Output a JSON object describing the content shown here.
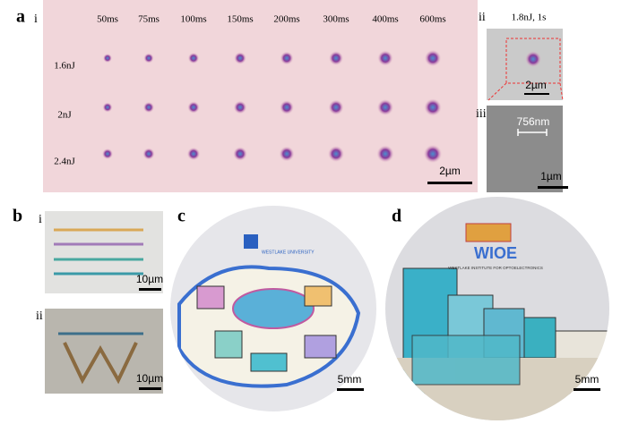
{
  "panel_a": {
    "label": "a",
    "sub_i": "i",
    "columns": [
      "50ms",
      "75ms",
      "100ms",
      "150ms",
      "200ms",
      "300ms",
      "400ms",
      "600ms"
    ],
    "rows": [
      "1.6nJ",
      "2nJ",
      "2.4nJ"
    ],
    "scale_bar": "2µm"
  },
  "panel_a_ii": {
    "label": "ii",
    "title": "1.8nJ, 1s",
    "scale_bar": "2µm"
  },
  "panel_a_iii": {
    "label": "iii",
    "feature": "756nm",
    "scale_bar": "1µm"
  },
  "panel_b": {
    "label": "b",
    "sub_i": "i",
    "sub_ii": "ii",
    "scale_bar_i": "10µm",
    "scale_bar_ii": "10µm"
  },
  "panel_c": {
    "label": "c",
    "logo_subtext": "WESTLAKE UNIVERSITY",
    "scale_bar": "5mm"
  },
  "panel_d": {
    "label": "d",
    "logo_text": "WIOE",
    "logo_subtext": "WESTLAKE INSTITUTE FOR OPTOELECTRONICS",
    "scale_bar": "5mm"
  }
}
